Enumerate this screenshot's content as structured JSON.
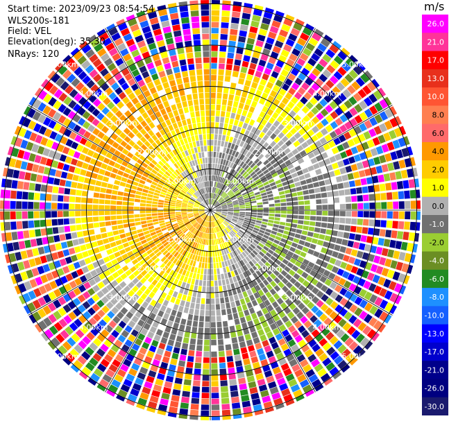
{
  "header": {
    "start_time_label": "Start time:",
    "start_time": "2023/09/23 08:54:54",
    "instrument": "WLS200s-181",
    "field_label": "Field:",
    "field": "VEL",
    "elevation_label": "Elevation(deg):",
    "elevation": "35.30",
    "nrays_label": "NRays:",
    "nrays": "120"
  },
  "chart_data": {
    "type": "heatmap",
    "projection": "polar-ppi",
    "field": "VEL",
    "units": "m/s",
    "nrays": 120,
    "elevation_deg": 35.3,
    "max_valid_range_km": 3.4,
    "max_range_km": 5.6,
    "range_rings": [
      {
        "label": "1.00km",
        "km": 1
      },
      {
        "label": "2.00km",
        "km": 2
      },
      {
        "label": "3.00km",
        "km": 3
      },
      {
        "label": "4.00km",
        "km": 4
      },
      {
        "label": "5.00km",
        "km": 5
      }
    ],
    "spokes_deg": [
      0,
      30,
      60,
      90,
      120,
      150
    ],
    "colorbar": {
      "unit": "m/s",
      "ticks": [
        "26.0",
        "21.0",
        "17.0",
        "13.0",
        "10.0",
        "8.0",
        "6.0",
        "4.0",
        "2.0",
        "1.0",
        "0.0",
        "-1.0",
        "-2.0",
        "-4.0",
        "-6.0",
        "-8.0",
        "-10.0",
        "-13.0",
        "-17.0",
        "-21.0",
        "-26.0",
        "-30.0"
      ],
      "colors": [
        "#ff00ff",
        "#ff3399",
        "#ff0000",
        "#e8301c",
        "#ff5533",
        "#ff7f50",
        "#ff6a6a",
        "#ff9900",
        "#ffcc00",
        "#ffff00",
        "#b0b0b0",
        "#707070",
        "#9acd32",
        "#6b8e23",
        "#228b22",
        "#1e90ff",
        "#1560ff",
        "#0000ff",
        "#0000cd",
        "#00008b",
        "#000080",
        "#1a1a6e"
      ]
    },
    "wind_pattern": {
      "near_range_velocity_ms": 2.0,
      "upwind_sector_deg": [
        300,
        60
      ],
      "downwind_sector_deg": [
        120,
        240
      ],
      "clutter_beyond_km": 3.4
    }
  }
}
